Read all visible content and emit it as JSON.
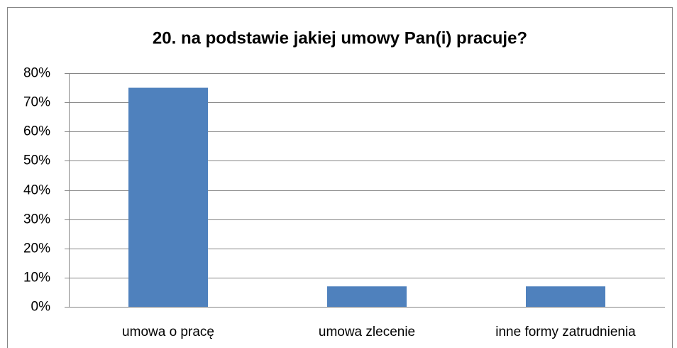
{
  "chart_data": {
    "type": "bar",
    "title": "20. na podstawie jakiej umowy Pan(i) pracuje?",
    "categories": [
      "umowa o pracę",
      "umowa zlecenie",
      "inne formy zatrudnienia"
    ],
    "values": [
      75,
      7,
      7
    ],
    "color": "#4f81bd",
    "ylim": [
      0,
      80
    ],
    "yticks": [
      {
        "value": 0,
        "label": "0%"
      },
      {
        "value": 10,
        "label": "10%"
      },
      {
        "value": 20,
        "label": "20%"
      },
      {
        "value": 30,
        "label": "30%"
      },
      {
        "value": 40,
        "label": "40%"
      },
      {
        "value": 50,
        "label": "50%"
      },
      {
        "value": 60,
        "label": "60%"
      },
      {
        "value": 70,
        "label": "70%"
      },
      {
        "value": 80,
        "label": "80%"
      }
    ],
    "grid": true
  }
}
